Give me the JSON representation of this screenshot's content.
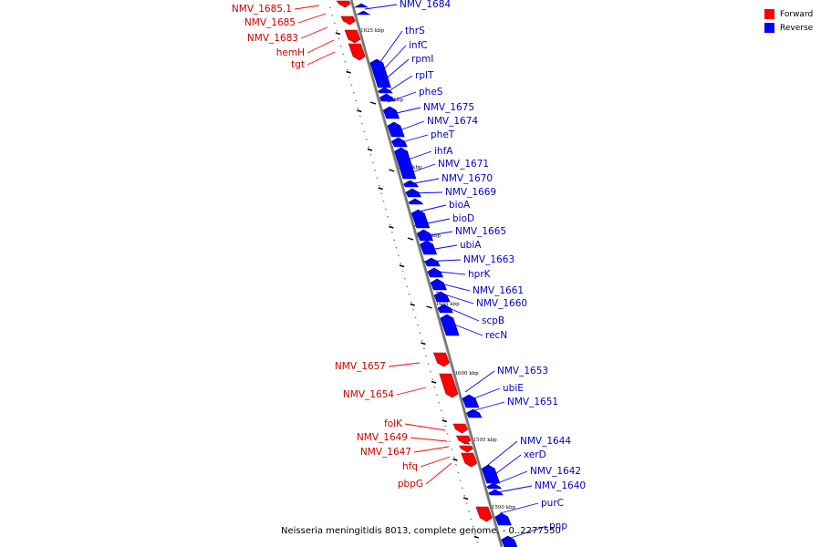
{
  "legend": {
    "forward_label": "Forward",
    "reverse_label": "Reverse",
    "forward_color": "#ff0000",
    "reverse_color": "#0000ff"
  },
  "caption": "Neisseria meningitidis 8013, complete genome. - 0..2277550",
  "kbp_ticks": [
    "1625 kbp",
    "1620 kbp",
    "1615 kbp",
    "1610 kbp",
    "1605 kbp",
    "1600 kbp",
    "1595 kbp",
    "1590 kbp"
  ],
  "forward_genes": [
    "NMV_1685.1",
    "NMV_1685",
    "NMV_1683",
    "hemH",
    "tgt",
    "NMV_1657",
    "NMV_1654",
    "folK",
    "NMV_1649",
    "NMV_1647",
    "hfq",
    "pbpG"
  ],
  "reverse_genes": [
    "NMV_1684",
    "thrS",
    "infC",
    "rpmI",
    "rplT",
    "pheS",
    "NMV_1675",
    "NMV_1674",
    "pheT",
    "ihfA",
    "NMV_1671",
    "NMV_1670",
    "NMV_1669",
    "bioA",
    "bioD",
    "NMV_1665",
    "ubiA",
    "NMV_1663",
    "hprK",
    "NMV_1661",
    "NMV_1660",
    "scpB",
    "recN",
    "NMV_1653",
    "ubiE",
    "NMV_1651",
    "NMV_1644",
    "xerD",
    "NMV_1642",
    "NMV_1640",
    "purC",
    "pnp"
  ]
}
